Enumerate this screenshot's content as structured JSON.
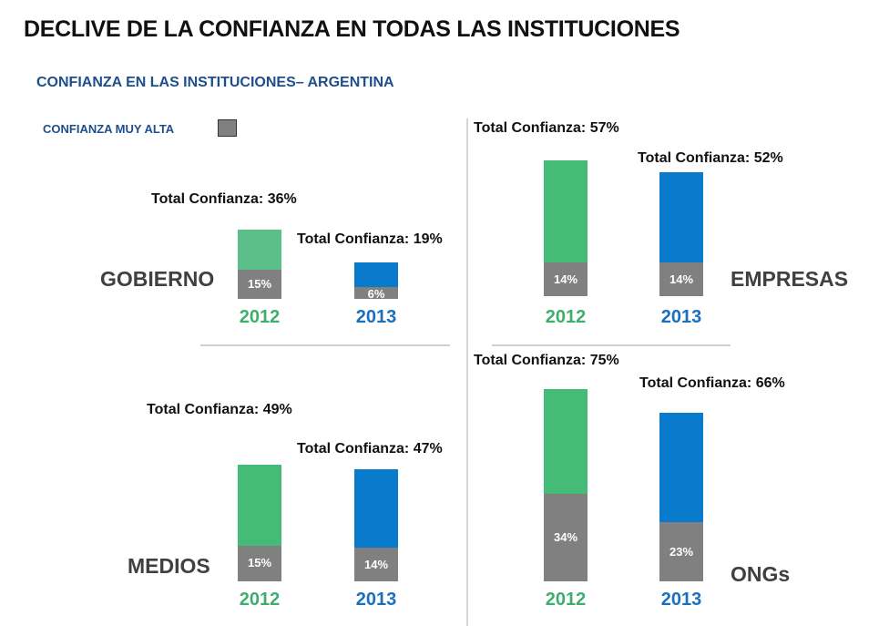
{
  "title": "DECLIVE DE LA CONFIANZA EN TODAS LAS INSTITUCIONES",
  "subtitle": "CONFIANZA EN LAS INSTITUCIONES– ARGENTINA",
  "legend": {
    "label": "CONFIANZA MUY ALTA",
    "color": "#808080"
  },
  "colors": {
    "2012": "#44bb77",
    "2012_gobierno": "#5cbf8a",
    "2013": "#0a7acc",
    "muy_alta": "#808080"
  },
  "chart_data": [
    {
      "type": "bar",
      "stacked": true,
      "institution": "GOBIERNO",
      "categories": [
        "2012",
        "2013"
      ],
      "series": [
        {
          "name": "CONFIANZA MUY ALTA",
          "values": [
            15,
            6
          ],
          "labels": [
            "15%",
            "6%"
          ]
        },
        {
          "name": "Total Confianza",
          "values": [
            36,
            19
          ],
          "labels": [
            "Total Confianza: 36%",
            "Total Confianza: 19%"
          ]
        }
      ]
    },
    {
      "type": "bar",
      "stacked": true,
      "institution": "EMPRESAS",
      "categories": [
        "2012",
        "2013"
      ],
      "series": [
        {
          "name": "CONFIANZA MUY ALTA",
          "values": [
            14,
            14
          ],
          "labels": [
            "14%",
            "14%"
          ]
        },
        {
          "name": "Total Confianza",
          "values": [
            57,
            52
          ],
          "labels": [
            "Total Confianza: 57%",
            "Total Confianza: 52%"
          ]
        }
      ]
    },
    {
      "type": "bar",
      "stacked": true,
      "institution": "MEDIOS",
      "categories": [
        "2012",
        "2013"
      ],
      "series": [
        {
          "name": "CONFIANZA MUY ALTA",
          "values": [
            15,
            14
          ],
          "labels": [
            "15%",
            "14%"
          ]
        },
        {
          "name": "Total Confianza",
          "values": [
            49,
            47
          ],
          "labels": [
            "Total Confianza: 49%",
            "Total Confianza: 47%"
          ]
        }
      ]
    },
    {
      "type": "bar",
      "stacked": true,
      "institution": "ONGs",
      "categories": [
        "2012",
        "2013"
      ],
      "series": [
        {
          "name": "CONFIANZA MUY ALTA",
          "values": [
            34,
            23
          ],
          "labels": [
            "34%",
            "23%"
          ]
        },
        {
          "name": "Total Confianza",
          "values": [
            75,
            66
          ],
          "labels": [
            "Total Confianza: 75%",
            "Total Confianza: 66%"
          ]
        }
      ]
    }
  ]
}
